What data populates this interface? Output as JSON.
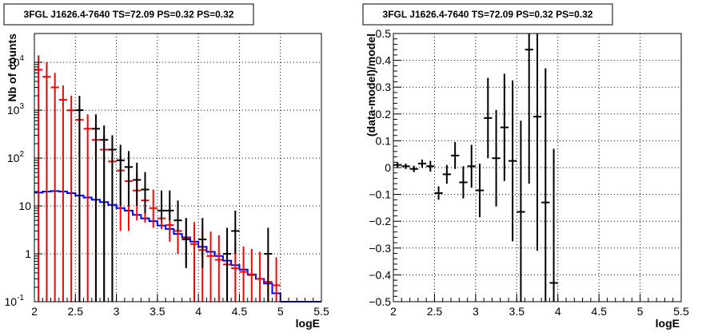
{
  "chart_data": [
    {
      "type": "histogram",
      "title": "3FGL J1626.4-7640 TS=72.09 PS=0.32 PS=0.32",
      "xlabel": "logE",
      "ylabel": "Nb of counts",
      "xlim": [
        2,
        5.5
      ],
      "ylim": [
        0.1,
        40000
      ],
      "yscale": "log",
      "grid": true,
      "x_ticks": [
        "2",
        "2.5",
        "3",
        "3.5",
        "4",
        "4.5",
        "5",
        "5.5"
      ],
      "y_ticks": [
        {
          "base": "10",
          "exp": "-1"
        },
        {
          "base": "1",
          "exp": ""
        },
        {
          "base": "10",
          "exp": ""
        },
        {
          "base": "10",
          "exp": "2"
        },
        {
          "base": "10",
          "exp": "3"
        },
        {
          "base": "10",
          "exp": "4"
        }
      ],
      "bin_width": 0.1,
      "series": [
        {
          "color": "#0000ff",
          "style": "step",
          "x": [
            2.05,
            2.15,
            2.25,
            2.35,
            2.45,
            2.55,
            2.65,
            2.75,
            2.85,
            2.95,
            3.05,
            3.15,
            3.25,
            3.35,
            3.45,
            3.55,
            3.65,
            3.75,
            3.85,
            3.95,
            4.05,
            4.15,
            4.25,
            4.35,
            4.45,
            4.55,
            4.65,
            4.75,
            4.85,
            4.95,
            5.05,
            5.15,
            5.25,
            5.35,
            5.45
          ],
          "values": [
            19,
            20,
            20.5,
            20,
            18.5,
            16.5,
            15,
            13.5,
            12,
            10.5,
            9,
            8,
            6.5,
            5.5,
            4.8,
            3.9,
            3.3,
            2.6,
            2.2,
            1.8,
            1.4,
            1.1,
            0.9,
            0.72,
            0.58,
            0.47,
            0.37,
            0.3,
            0.24,
            0.15,
            0.1,
            0.1,
            0.1,
            0.1,
            0.1
          ]
        },
        {
          "color": "#ff0000",
          "style": "errorbar",
          "x": [
            2.05,
            2.15,
            2.25,
            2.35,
            2.45,
            2.55,
            2.65,
            2.75,
            2.85,
            2.95,
            3.05,
            3.15,
            3.25,
            3.35,
            3.45,
            3.55,
            3.65,
            3.75,
            3.85,
            3.95,
            4.05,
            4.15,
            4.25,
            4.35,
            4.45,
            4.55,
            4.65,
            4.75,
            4.85,
            4.95
          ],
          "values": [
            7000,
            5000,
            3000,
            1650,
            1000,
            630,
            410,
            240,
            150,
            85,
            55,
            33,
            21,
            13,
            9,
            5.5,
            4,
            3,
            2.1,
            1.6,
            1.2,
            0.9,
            0.75,
            0.6,
            0.5,
            0.42,
            0.36,
            0.3,
            0.26,
            0.22
          ],
          "err_low": [
            7000,
            5000,
            3000,
            1650,
            1000,
            630,
            410,
            240,
            150,
            85,
            52,
            30,
            16,
            8.5,
            5.5,
            2.2,
            2.2,
            2.0,
            1.55,
            1.55,
            1.15,
            0.85,
            0.7,
            0.55,
            0.45,
            0.38,
            0.32,
            0.28,
            0.24,
            0.2
          ],
          "err_high": [
            7000,
            5000,
            3000,
            1650,
            1000,
            630,
            410,
            240,
            150,
            85,
            58,
            38,
            27,
            19,
            13,
            9.5,
            6.5,
            4.8,
            3.5,
            3.0,
            2.4,
            2.0,
            1.7,
            1.35,
            1.2,
            1.0,
            0.9,
            0.8,
            0.7,
            0.62
          ]
        },
        {
          "color": "#000000",
          "style": "errorbar",
          "x": [
            2.55,
            2.75,
            2.85,
            2.95,
            3.05,
            3.15,
            3.25,
            3.35,
            3.55,
            3.65,
            3.75,
            3.85,
            4.05,
            4.35,
            4.45,
            4.85
          ],
          "values": [
            1000,
            410,
            240,
            150,
            90,
            65,
            35,
            22,
            8,
            8,
            5,
            2,
            2,
            1,
            3,
            1
          ],
          "err_low": [
            1000,
            410,
            240,
            150,
            80,
            55,
            25,
            15,
            3,
            3,
            2,
            1.5,
            1.5,
            0.9,
            2.0,
            0.9
          ],
          "err_high": [
            1000,
            410,
            240,
            150,
            100,
            75,
            45,
            29,
            13,
            13,
            8,
            3.6,
            3.6,
            2.5,
            5.0,
            2.5
          ]
        }
      ]
    },
    {
      "type": "errorbar",
      "title": "3FGL J1626.4-7640 TS=72.09 PS=0.32 PS=0.32",
      "xlabel": "logE",
      "ylabel": "(data-model)/model",
      "xlim": [
        2,
        5.5
      ],
      "ylim": [
        -0.5,
        0.5
      ],
      "grid": true,
      "x_ticks": [
        "2",
        "2.5",
        "3",
        "3.5",
        "4",
        "4.5",
        "5",
        "5.5"
      ],
      "y_ticks": [
        "−0.5",
        "−0.4",
        "−0.3",
        "−0.2",
        "−0.1",
        "0",
        "0.1",
        "0.2",
        "0.3",
        "0.4",
        "0.5"
      ],
      "series": [
        {
          "color": "#000000",
          "x": [
            2.05,
            2.15,
            2.25,
            2.35,
            2.45,
            2.55,
            2.65,
            2.75,
            2.85,
            2.95,
            3.05,
            3.15,
            3.25,
            3.35,
            3.45,
            3.55,
            3.65,
            3.75,
            3.85,
            3.95
          ],
          "values": [
            0.01,
            0.005,
            -0.005,
            0.015,
            0.005,
            -0.095,
            -0.025,
            0.045,
            -0.055,
            0.005,
            -0.085,
            0.185,
            0.035,
            0.15,
            0.025,
            -0.165,
            0.44,
            0.19,
            -0.13,
            -0.43
          ],
          "err": [
            0.01,
            0.01,
            0.012,
            0.015,
            0.02,
            0.025,
            0.035,
            0.05,
            0.06,
            0.08,
            0.1,
            0.15,
            0.18,
            0.2,
            0.3,
            0.34,
            0.5,
            0.5,
            0.5,
            0.5
          ]
        }
      ]
    }
  ]
}
